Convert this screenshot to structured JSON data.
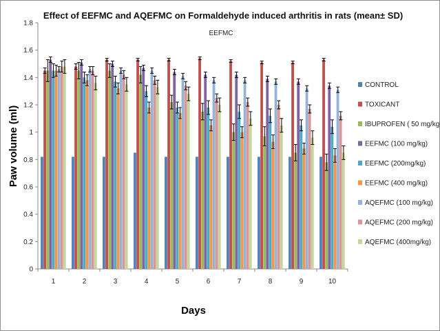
{
  "chart_data": {
    "type": "bar",
    "title": "Effect of EEFMC and AQEFMC on Formaldehyde induced arthritis in rats (mean± SD)",
    "subtitle": "EEFMC",
    "xlabel": "Days",
    "ylabel": "Paw volume (ml)",
    "ylim": [
      0,
      1.8
    ],
    "ytick_step": 0.2,
    "yticks": [
      "0",
      "0.2",
      "0.4",
      "0.6",
      "0.8",
      "1",
      "1.2",
      "1.4",
      "1.6",
      "1.8"
    ],
    "categories": [
      "1",
      "2",
      "3",
      "4",
      "5",
      "6",
      "7",
      "8",
      "9",
      "10"
    ],
    "grid": false,
    "legend_position": "right",
    "series": [
      {
        "name": "CONTROL",
        "color": "#4f81bd",
        "values": [
          0.82,
          0.82,
          0.82,
          0.85,
          0.82,
          0.82,
          0.82,
          0.82,
          0.82,
          0.82
        ],
        "errors": [
          0,
          0,
          0,
          0,
          0,
          0,
          0,
          0,
          0,
          0
        ]
      },
      {
        "name": "TOXICANT",
        "color": "#c0504d",
        "values": [
          1.45,
          1.48,
          1.53,
          1.53,
          1.53,
          1.54,
          1.52,
          1.51,
          1.51,
          1.53
        ],
        "errors": [
          0.02,
          0.02,
          0.01,
          0.01,
          0.01,
          0.01,
          0.01,
          0.01,
          0.01,
          0.01
        ]
      },
      {
        "name": "IBUPROFEN ( 50 mg/kg)",
        "color": "#9bbb59",
        "values": [
          1.45,
          1.45,
          1.45,
          1.42,
          1.22,
          1.15,
          1.0,
          0.97,
          0.85,
          0.78
        ],
        "errors": [
          0.08,
          0.06,
          0.05,
          0.06,
          0.05,
          0.06,
          0.06,
          0.07,
          0.06,
          0.06
        ]
      },
      {
        "name": "EEFMC (100 mg/kg)",
        "color": "#8064a2",
        "values": [
          1.53,
          1.51,
          1.5,
          1.47,
          1.44,
          1.42,
          1.42,
          1.39,
          1.37,
          1.34
        ],
        "errors": [
          0.02,
          0.02,
          0.02,
          0.02,
          0.02,
          0.02,
          0.02,
          0.02,
          0.02,
          0.02
        ]
      },
      {
        "name": "EEFMC (200mg/kg)",
        "color": "#4bacc6",
        "values": [
          1.45,
          1.4,
          1.37,
          1.3,
          1.18,
          1.18,
          1.15,
          1.12,
          1.05,
          1.04
        ],
        "errors": [
          0.05,
          0.04,
          0.04,
          0.04,
          0.04,
          0.05,
          0.05,
          0.05,
          0.04,
          0.05
        ]
      },
      {
        "name": "EEFMC (400 mg/kg)",
        "color": "#f79646",
        "values": [
          1.45,
          1.38,
          1.32,
          1.18,
          1.14,
          1.05,
          1.0,
          0.93,
          0.88,
          0.83
        ],
        "errors": [
          0.04,
          0.04,
          0.04,
          0.04,
          0.04,
          0.04,
          0.04,
          0.05,
          0.04,
          0.05
        ]
      },
      {
        "name": "AQEFMC (100 mg/kg)",
        "color": "#95b3d7",
        "values": [
          1.46,
          1.46,
          1.45,
          1.45,
          1.41,
          1.38,
          1.38,
          1.37,
          1.32,
          1.31
        ],
        "errors": [
          0.02,
          0.02,
          0.02,
          0.02,
          0.02,
          0.02,
          0.02,
          0.02,
          0.02,
          0.02
        ]
      },
      {
        "name": "AQEFMC (200 mg/kg)",
        "color": "#d99694",
        "values": [
          1.48,
          1.45,
          1.42,
          1.38,
          1.34,
          1.25,
          1.22,
          1.2,
          1.17,
          1.12
        ],
        "errors": [
          0.04,
          0.03,
          0.03,
          0.03,
          0.03,
          0.03,
          0.03,
          0.03,
          0.03,
          0.03
        ]
      },
      {
        "name": "AQEFMC (400mg/kg)",
        "color": "#c3d69b",
        "values": [
          1.48,
          1.36,
          1.35,
          1.33,
          1.28,
          1.2,
          1.1,
          1.05,
          0.96,
          0.85
        ],
        "errors": [
          0.05,
          0.05,
          0.05,
          0.05,
          0.05,
          0.05,
          0.05,
          0.05,
          0.05,
          0.05
        ]
      }
    ]
  }
}
